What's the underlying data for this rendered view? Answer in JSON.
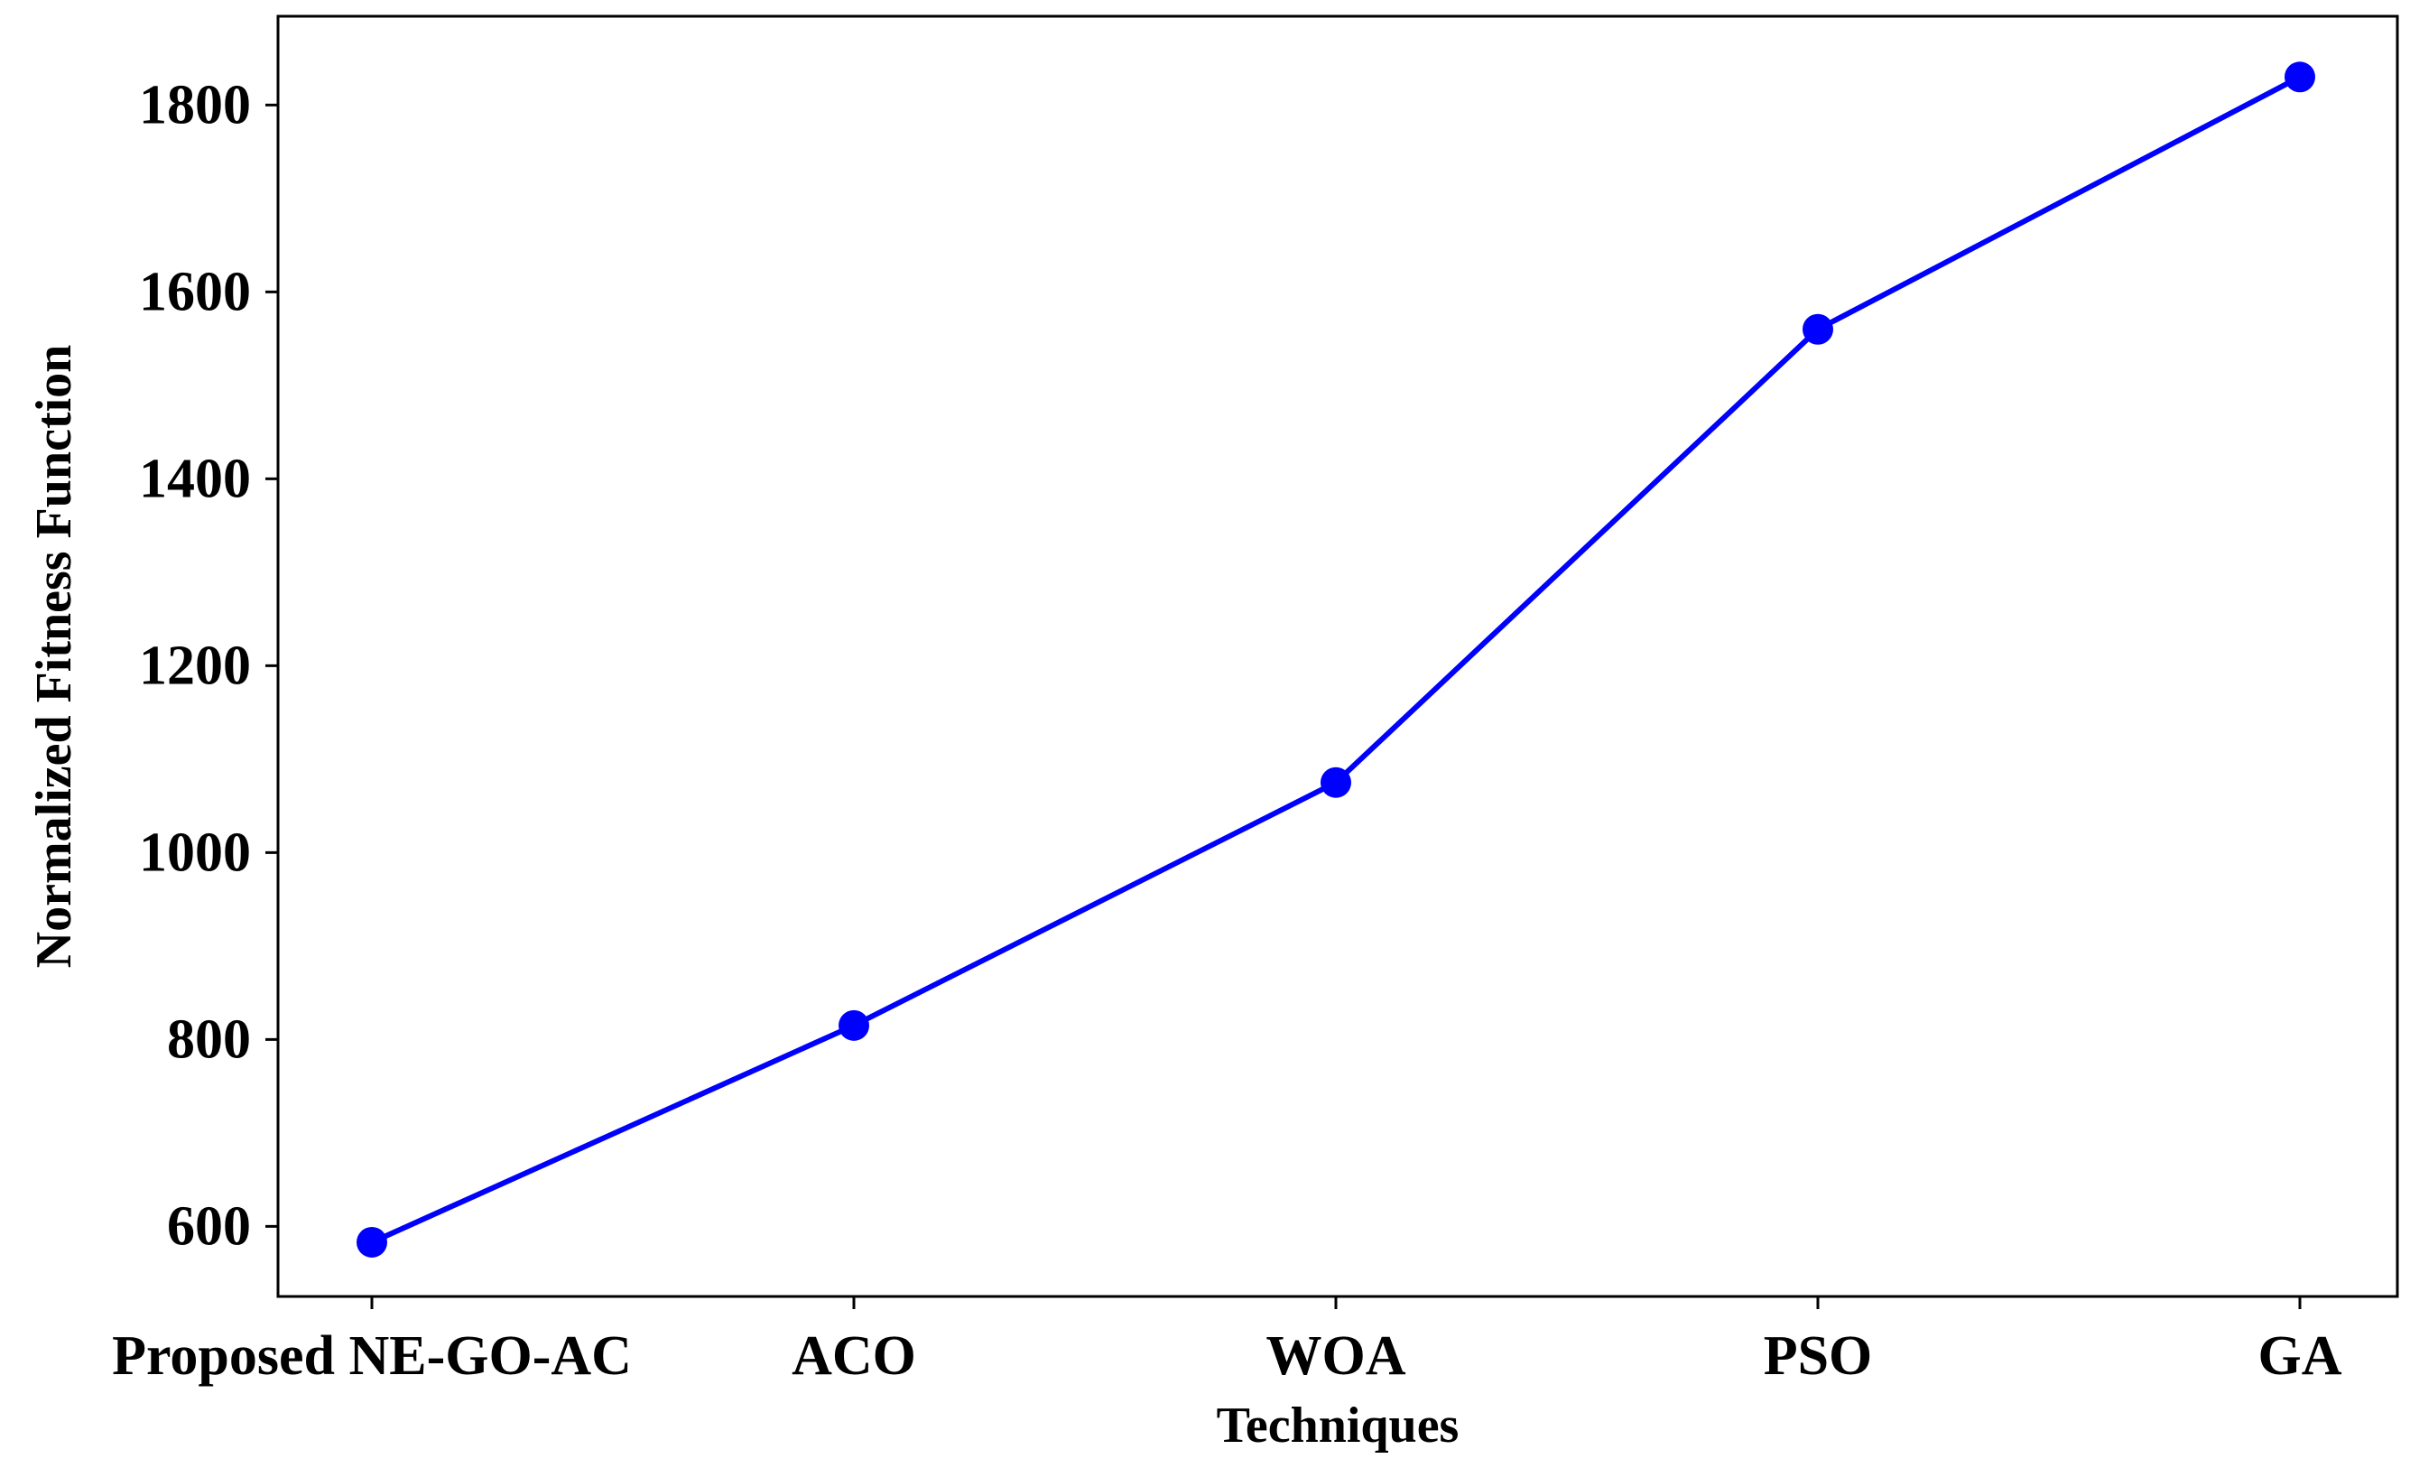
{
  "chart_data": {
    "type": "line",
    "title": "",
    "xlabel": "Techniques",
    "ylabel": "Normalized Fitness Function",
    "categories": [
      "Proposed NE-GO-AC",
      "ACO",
      "WOA",
      "PSO",
      "GA"
    ],
    "series": [
      {
        "name": "Normalized Fitness Function",
        "values": [
          583,
          815,
          1075,
          1560,
          1830
        ],
        "color": "#0000ff",
        "marker": "circle"
      }
    ],
    "ylim": [
      525,
      1895
    ],
    "yticks": [
      600,
      800,
      1000,
      1200,
      1400,
      1600,
      1800
    ],
    "ytick_labels": [
      "600",
      "800",
      "1000",
      "1200",
      "1400",
      "1600",
      "1800"
    ],
    "grid": false,
    "legend": "none"
  }
}
